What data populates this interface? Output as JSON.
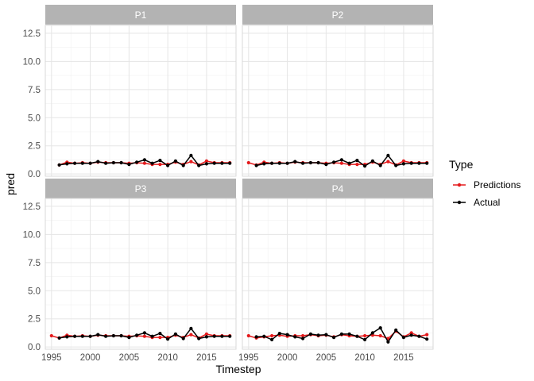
{
  "chart_data": {
    "type": "line",
    "xlabel": "Timestep",
    "ylabel": "pred",
    "xlim": [
      1994.2,
      2018.8
    ],
    "ylim": [
      -0.2,
      13.2
    ],
    "x_ticks": [
      1995,
      2000,
      2005,
      2010,
      2015
    ],
    "y_ticks": [
      0.0,
      2.5,
      5.0,
      7.5,
      10.0,
      12.5
    ],
    "y_tick_labels": [
      "0.0",
      "2.5",
      "5.0",
      "7.5",
      "10.0",
      "12.5"
    ],
    "grid": true,
    "legend": {
      "title": "Type",
      "placement": "right",
      "entries": [
        {
          "name": "Predictions",
          "color": "#e41a1c"
        },
        {
          "name": "Actual",
          "color": "#000000"
        }
      ]
    },
    "x": [
      1995,
      1996,
      1997,
      1998,
      1999,
      2000,
      2001,
      2002,
      2003,
      2004,
      2005,
      2006,
      2007,
      2008,
      2009,
      2010,
      2011,
      2012,
      2013,
      2014,
      2015,
      2016,
      2017,
      2018
    ],
    "panels": [
      {
        "title": "P1",
        "series": [
          {
            "name": "Predictions",
            "values": [
              null,
              0.8,
              1.05,
              0.95,
              1.0,
              0.95,
              1.05,
              1.0,
              1.0,
              1.0,
              0.95,
              1.0,
              0.95,
              0.85,
              0.85,
              0.85,
              1.05,
              0.85,
              1.1,
              0.8,
              1.15,
              1.0,
              1.0,
              1.0
            ]
          },
          {
            "name": "Actual",
            "values": [
              null,
              0.8,
              0.9,
              0.95,
              0.95,
              0.95,
              1.1,
              0.95,
              1.0,
              1.0,
              0.85,
              1.05,
              1.25,
              0.95,
              1.2,
              0.75,
              1.15,
              0.75,
              1.65,
              0.75,
              0.9,
              0.95,
              0.95,
              0.95
            ]
          }
        ]
      },
      {
        "title": "P2",
        "series": [
          {
            "name": "Predictions",
            "values": [
              1.0,
              0.8,
              1.05,
              0.95,
              1.0,
              0.95,
              1.05,
              1.0,
              1.0,
              1.0,
              0.95,
              1.0,
              0.95,
              0.85,
              0.85,
              0.85,
              1.05,
              0.85,
              1.1,
              0.8,
              1.15,
              1.0,
              1.0,
              1.0
            ]
          },
          {
            "name": "Actual",
            "values": [
              null,
              0.75,
              0.9,
              0.95,
              0.95,
              0.95,
              1.1,
              0.95,
              1.0,
              1.0,
              0.85,
              1.05,
              1.25,
              0.95,
              1.2,
              0.7,
              1.15,
              0.75,
              1.65,
              0.75,
              0.9,
              0.95,
              0.95,
              0.95
            ]
          }
        ]
      },
      {
        "title": "P3",
        "series": [
          {
            "name": "Predictions",
            "values": [
              1.0,
              0.8,
              1.05,
              0.95,
              1.0,
              0.95,
              1.05,
              1.0,
              1.0,
              1.0,
              0.95,
              1.0,
              0.95,
              0.85,
              0.85,
              0.85,
              1.05,
              0.85,
              1.1,
              0.8,
              1.15,
              1.0,
              1.0,
              1.0
            ]
          },
          {
            "name": "Actual",
            "values": [
              null,
              0.8,
              0.9,
              0.95,
              0.95,
              0.95,
              1.1,
              0.95,
              1.0,
              1.0,
              0.85,
              1.05,
              1.25,
              0.95,
              1.2,
              0.7,
              1.15,
              0.75,
              1.65,
              0.75,
              0.9,
              0.95,
              0.95,
              0.95
            ]
          }
        ]
      },
      {
        "title": "P4",
        "series": [
          {
            "name": "Predictions",
            "values": [
              1.0,
              0.8,
              0.9,
              1.0,
              1.05,
              0.95,
              1.0,
              1.0,
              1.1,
              1.0,
              1.05,
              0.9,
              1.1,
              1.0,
              0.95,
              1.0,
              1.05,
              1.0,
              0.75,
              1.4,
              0.9,
              1.25,
              0.95,
              1.1
            ]
          },
          {
            "name": "Actual",
            "values": [
              null,
              0.9,
              0.95,
              0.65,
              1.2,
              1.1,
              0.9,
              0.75,
              1.15,
              1.05,
              1.1,
              0.85,
              1.15,
              1.15,
              0.95,
              0.65,
              1.25,
              1.7,
              0.45,
              1.5,
              0.85,
              1.05,
              0.95,
              0.7
            ]
          }
        ]
      }
    ]
  }
}
